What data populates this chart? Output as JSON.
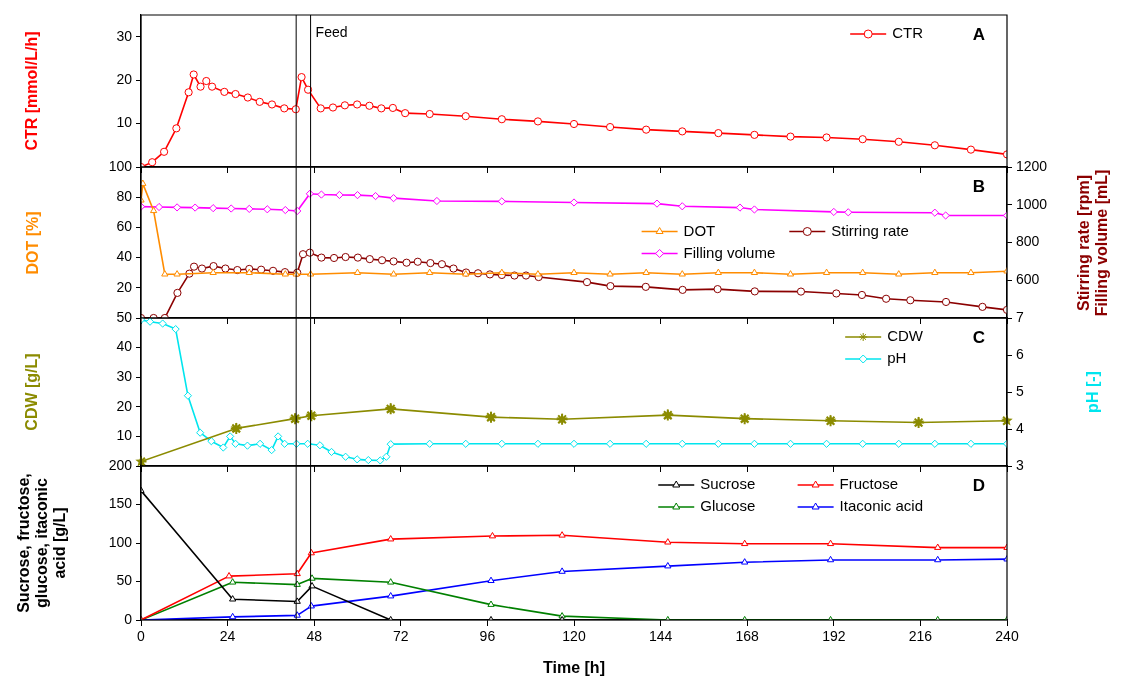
{
  "chart_data": [
    {
      "type": "line",
      "ylabel": "CTR [mmol/L/h]",
      "annotations": [
        "A"
      ],
      "xlim": [
        0,
        240
      ],
      "xticks": [
        0,
        24,
        48,
        72,
        96,
        120,
        144,
        168,
        192,
        216,
        240
      ],
      "ylim": [
        0,
        35
      ],
      "yticks": [
        10,
        20,
        30
      ],
      "tick_labels": "y",
      "legend": "top right",
      "ref_lines": [
        {
          "axis": "x",
          "value": 43
        },
        {
          "axis": "x",
          "value": 47,
          "label": "Feed"
        }
      ],
      "series": [
        {
          "name": "CTR",
          "color": "#ff0000",
          "marker": "circle",
          "x": [
            0,
            3.1,
            6.4,
            9.8,
            13.2,
            14.6,
            16.5,
            18.1,
            19.7,
            23.1,
            26.2,
            29.6,
            32.9,
            36.3,
            39.7,
            42.9,
            44.5,
            46.3,
            49.8,
            53.2,
            56.5,
            59.9,
            63.3,
            66.6,
            69.8,
            73.2,
            80,
            90,
            100,
            110,
            120,
            130,
            140,
            150,
            160,
            170,
            180,
            190,
            200,
            210,
            220,
            230,
            240
          ],
          "values": [
            0,
            1.1,
            3.5,
            8.9,
            17.2,
            21.3,
            18.5,
            19.8,
            18.5,
            17.3,
            16.8,
            16.0,
            15.0,
            14.4,
            13.5,
            13.3,
            20.7,
            17.8,
            13.5,
            13.7,
            14.2,
            14.4,
            14.1,
            13.5,
            13.6,
            12.4,
            12.2,
            11.7,
            11.0,
            10.5,
            9.9,
            9.2,
            8.6,
            8.2,
            7.8,
            7.4,
            7.0,
            6.8,
            6.4,
            5.8,
            5.0,
            4.0,
            2.9
          ]
        }
      ]
    },
    {
      "type": "line",
      "ylabel": "DOT [%]",
      "y2label": "Stirring rate [rpm] Filling volume [mL]",
      "annotations": [
        "B"
      ],
      "xlim": [
        0,
        240
      ],
      "xticks": [
        0,
        24,
        48,
        72,
        96,
        120,
        144,
        168,
        192,
        216,
        240
      ],
      "ylim": [
        0,
        100
      ],
      "yticks": [
        20,
        40,
        60,
        80,
        100
      ],
      "y2lim": [
        400,
        1200
      ],
      "y2ticks": [
        600,
        800,
        1000,
        1200
      ],
      "tick_labels": "y",
      "legend": "right",
      "ref_lines": [
        {
          "axis": "x",
          "value": 43
        },
        {
          "axis": "x",
          "value": 47
        }
      ],
      "series": [
        {
          "name": "DOT",
          "color": "#ff8c00",
          "marker": "triangle",
          "x": [
            0,
            0.5,
            3.5,
            6.6,
            10,
            20,
            30,
            40,
            43,
            47,
            60,
            70,
            80,
            90,
            100,
            110,
            120,
            130,
            140,
            150,
            160,
            170,
            180,
            190,
            200,
            210,
            220,
            230,
            240
          ],
          "values": [
            78,
            89,
            71,
            29,
            29,
            30,
            30,
            29,
            29,
            29,
            30,
            29,
            30,
            29,
            30,
            29,
            30,
            29,
            30,
            29,
            30,
            30,
            29,
            30,
            30,
            29,
            30,
            30,
            31
          ]
        },
        {
          "name": "Stirring rate",
          "color": "#8b0000",
          "marker": "circle",
          "axis": "y2",
          "x": [
            0,
            3.5,
            6.6,
            10.1,
            13.4,
            14.7,
            16.9,
            20.1,
            23.4,
            26.7,
            30,
            33.3,
            36.6,
            39.9,
            43.3,
            44.9,
            46.8,
            50,
            53.5,
            56.7,
            60.1,
            63.4,
            66.8,
            70,
            73.6,
            76.7,
            80.2,
            83.4,
            86.6,
            90.1,
            93.4,
            96.7,
            100,
            103.5,
            106.7,
            110.2,
            123.6,
            130.1,
            139.9,
            150.1,
            159.8,
            170.1,
            182.9,
            192.7,
            199.8,
            206.5,
            213.2,
            223.1,
            233.2,
            240
          ],
          "values": [
            400,
            400,
            400,
            533,
            635,
            672,
            662,
            675,
            662,
            654,
            660,
            656,
            650,
            643,
            640,
            738,
            746,
            720,
            718,
            723,
            720,
            712,
            706,
            700,
            693,
            698,
            691,
            685,
            662,
            641,
            637,
            631,
            628,
            625,
            625,
            617,
            590,
            569,
            565,
            549,
            553,
            541,
            540,
            530,
            522,
            502,
            494,
            485,
            459,
            443
          ]
        },
        {
          "name": "Filling volume",
          "color": "#ff00ff",
          "marker": "diamond",
          "axis": "y2",
          "x": [
            0,
            5,
            10,
            15,
            20,
            25,
            30,
            35,
            40,
            43.3,
            46.8,
            50,
            55,
            60,
            65,
            70,
            82,
            100,
            120,
            143,
            150,
            166,
            170,
            192,
            196,
            220,
            223,
            240
          ],
          "values": [
            990,
            988,
            986,
            985,
            982,
            980,
            978,
            976,
            972,
            967,
            1058,
            1054,
            1052,
            1051,
            1046,
            1035,
            1020,
            1018,
            1012,
            1006,
            992,
            985,
            975,
            962,
            960,
            958,
            943,
            943
          ]
        }
      ]
    },
    {
      "type": "line",
      "ylabel": "CDW [g/L]",
      "y2label": "pH [-]",
      "annotations": [
        "C"
      ],
      "xlim": [
        0,
        240
      ],
      "xticks": [
        0,
        24,
        48,
        72,
        96,
        120,
        144,
        168,
        192,
        216,
        240
      ],
      "ylim": [
        0,
        50
      ],
      "yticks": [
        10,
        20,
        30,
        40,
        50
      ],
      "y2lim": [
        3,
        7
      ],
      "y2ticks": [
        3,
        4,
        5,
        6,
        7
      ],
      "tick_labels": "y",
      "legend": "top right",
      "ref_lines": [
        {
          "axis": "x",
          "value": 43
        },
        {
          "axis": "x",
          "value": 47
        }
      ],
      "series": [
        {
          "name": "CDW",
          "color": "#8b8b00",
          "marker": "cross",
          "x": [
            0,
            26.4,
            42.7,
            47.2,
            69.2,
            97,
            116.7,
            146,
            167.3,
            191.1,
            215.5,
            240
          ],
          "values": [
            1.5,
            12.7,
            16,
            17,
            19.3,
            16.5,
            15.8,
            17.2,
            16,
            15.3,
            14.7,
            15.3
          ]
        },
        {
          "name": "pH",
          "color": "#00e5ee",
          "marker": "diamond",
          "axis": "y2",
          "x": [
            0,
            2.5,
            6,
            9.6,
            13,
            16.4,
            19.5,
            22.8,
            24.7,
            26.2,
            29.5,
            33,
            36.2,
            38,
            39.8,
            43.1,
            46.2,
            49.6,
            52.8,
            56.7,
            59.9,
            63,
            66.3,
            68,
            69.2,
            80,
            90,
            100,
            110,
            120,
            130,
            140,
            150,
            160,
            170,
            180,
            190,
            200,
            210,
            220,
            230,
            240
          ],
          "values": [
            6.95,
            6.9,
            6.85,
            6.7,
            4.9,
            3.9,
            3.67,
            3.5,
            3.8,
            3.6,
            3.55,
            3.6,
            3.43,
            3.8,
            3.6,
            3.6,
            3.6,
            3.56,
            3.38,
            3.25,
            3.18,
            3.16,
            3.15,
            3.25,
            3.59,
            3.6,
            3.6,
            3.6,
            3.6,
            3.6,
            3.6,
            3.6,
            3.6,
            3.6,
            3.6,
            3.6,
            3.6,
            3.6,
            3.6,
            3.6,
            3.6,
            3.6
          ]
        }
      ]
    },
    {
      "type": "line",
      "ylabel": "Sucrose, fructose, glucose, itaconic acid [g/L]",
      "xlabel": "Time [h]",
      "annotations": [
        "D"
      ],
      "xlim": [
        0,
        240
      ],
      "xticks": [
        0,
        24,
        48,
        72,
        96,
        120,
        144,
        168,
        192,
        216,
        240
      ],
      "ylim": [
        0,
        200
      ],
      "yticks": [
        0,
        50,
        100,
        150,
        200
      ],
      "legend": "top right",
      "ref_lines": [
        {
          "axis": "x",
          "value": 43
        },
        {
          "axis": "x",
          "value": 47
        }
      ],
      "series": [
        {
          "name": "Sucrose",
          "color": "#000000",
          "marker": "triangle",
          "x": [
            0,
            25.4,
            43.3,
            47.4,
            69.2,
            97,
            116.7
          ],
          "values": [
            168,
            27,
            24,
            44,
            0,
            0,
            0
          ]
        },
        {
          "name": "Fructose",
          "color": "#ff0000",
          "marker": "triangle",
          "x": [
            0,
            24.4,
            43.3,
            47.2,
            69.2,
            97.4,
            116.7,
            146,
            167.3,
            191.1,
            220.8,
            240
          ],
          "values": [
            0,
            57,
            60,
            87,
            105,
            109,
            110,
            101,
            99,
            99,
            94,
            94
          ]
        },
        {
          "name": "Glucose",
          "color": "#008000",
          "marker": "triangle",
          "x": [
            0,
            25.4,
            43.3,
            47.4,
            69.2,
            97,
            116.7,
            146,
            167.3,
            191.1,
            220.8,
            240
          ],
          "values": [
            0,
            49,
            46,
            54,
            49,
            20,
            5,
            0,
            0,
            0,
            0,
            0
          ]
        },
        {
          "name": "Itaconic acid",
          "color": "#0000ff",
          "marker": "triangle",
          "x": [
            0,
            25.4,
            43.3,
            47.2,
            69.2,
            97,
            116.7,
            146,
            167.3,
            191.1,
            220.8,
            240
          ],
          "values": [
            0,
            4,
            6,
            18,
            31,
            51,
            63,
            70,
            75,
            78,
            78,
            79
          ]
        }
      ]
    }
  ]
}
